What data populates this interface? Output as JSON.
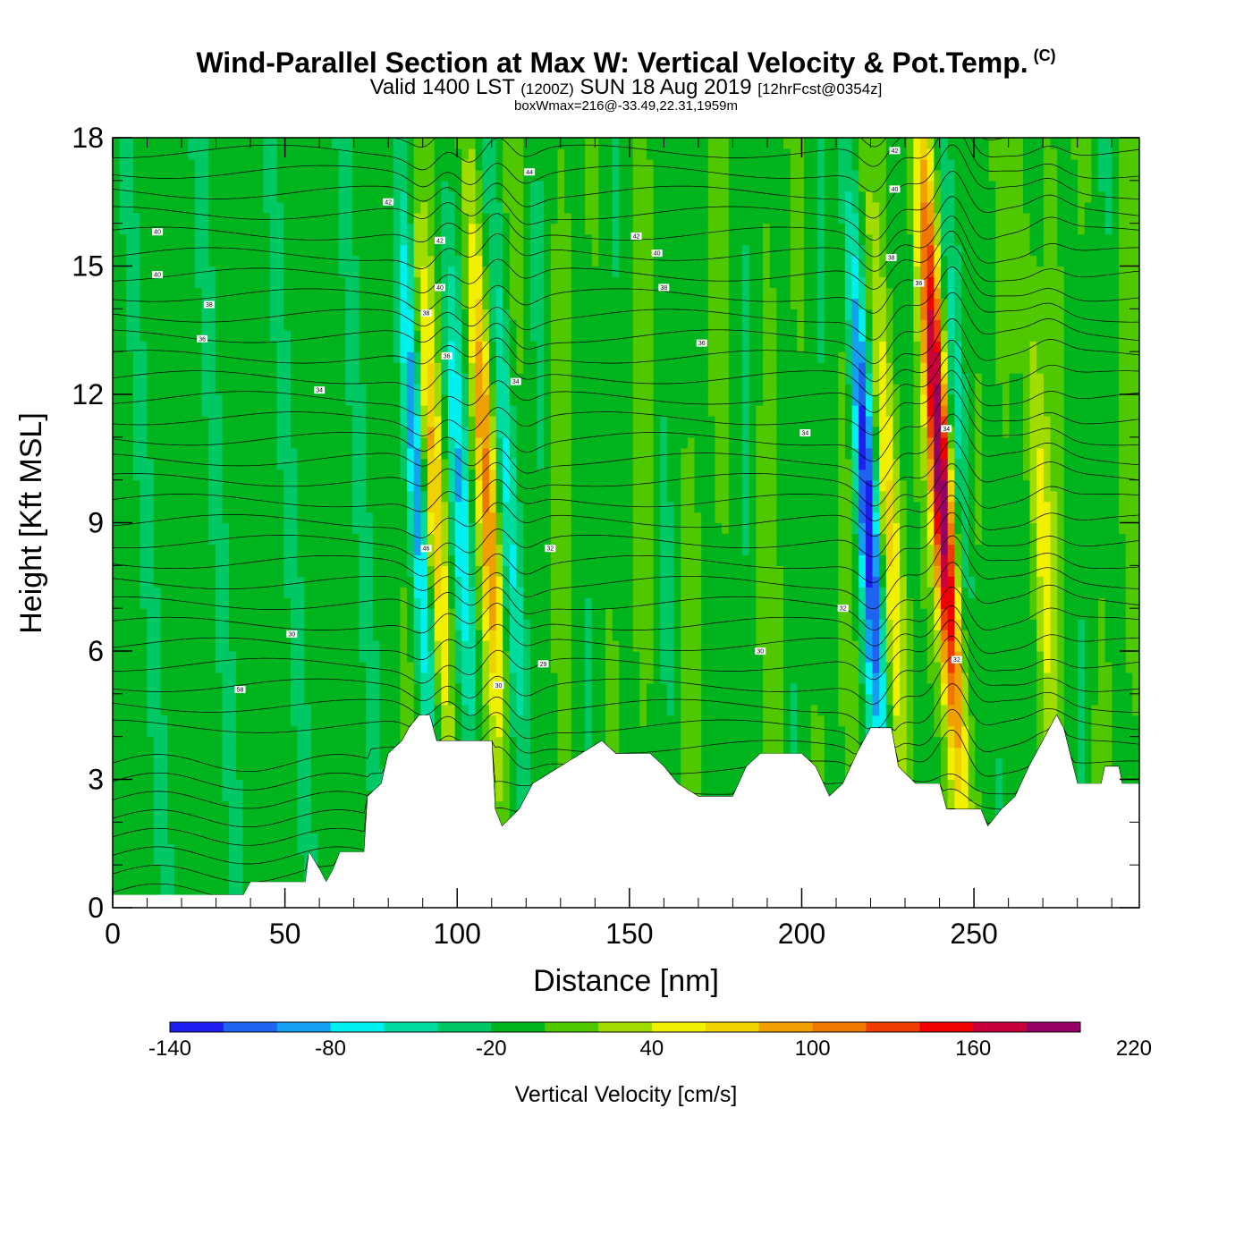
{
  "header": {
    "title": "Wind-Parallel Section at Max W: Vertical Velocity & Pot.Temp.",
    "title_mark": "(C)",
    "valid_prefix": "Valid 1400 LST",
    "valid_utc": "(1200Z)",
    "valid_date": "SUN 18 Aug 2019",
    "forecast_info": "[12hrFcst@0354z]",
    "box_info": "boxWmax=216@-33.49,22.31,1959m"
  },
  "chart_data": {
    "type": "heatmap",
    "title": "Wind-Parallel Section at Max W: Vertical Velocity & Pot.Temp.",
    "xlabel": "Distance [nm]",
    "ylabel": "Height [Kft MSL]",
    "xlim": [
      0,
      298
    ],
    "ylim": [
      0,
      18
    ],
    "x_ticks": [
      "0",
      "50",
      "100",
      "150",
      "200",
      "250"
    ],
    "x_tick_values": [
      0,
      50,
      100,
      150,
      200,
      250
    ],
    "y_ticks": [
      "0",
      "3",
      "6",
      "9",
      "12",
      "15",
      "18"
    ],
    "y_tick_values": [
      0,
      3,
      6,
      9,
      12,
      15,
      18
    ],
    "colorbar": {
      "title": "Vertical Velocity [cm/s]",
      "labels": [
        "-140",
        "-80",
        "-20",
        "40",
        "100",
        "160",
        "220"
      ],
      "min": -140,
      "max": 220,
      "step": 20,
      "colors": [
        "#1e1ef0",
        "#1e64f0",
        "#14a0f0",
        "#00f0f0",
        "#00dca0",
        "#00c864",
        "#00b41e",
        "#50c800",
        "#a0dc00",
        "#f0f000",
        "#f0d200",
        "#f0a000",
        "#f07800",
        "#f03c00",
        "#f00000",
        "#c8003c",
        "#960064"
      ]
    },
    "updraft_centers": [
      {
        "x": 96,
        "w": 90
      },
      {
        "x": 112,
        "w": 100
      },
      {
        "x": 228,
        "w": 70
      },
      {
        "x": 244,
        "w": 216
      },
      {
        "x": 272,
        "w": 55
      }
    ],
    "downdraft_centers": [
      {
        "x": 92,
        "w": -100
      },
      {
        "x": 104,
        "w": -60
      },
      {
        "x": 118,
        "w": -60
      },
      {
        "x": 222,
        "w": -120
      },
      {
        "x": 250,
        "w": -40
      }
    ],
    "terrain_kft": [
      {
        "x": 0,
        "z": 0.3
      },
      {
        "x": 38,
        "z": 0.3
      },
      {
        "x": 40,
        "z": 0.6
      },
      {
        "x": 56,
        "z": 0.6
      },
      {
        "x": 57,
        "z": 1.3
      },
      {
        "x": 60,
        "z": 0.9
      },
      {
        "x": 62,
        "z": 0.6
      },
      {
        "x": 64,
        "z": 0.9
      },
      {
        "x": 66,
        "z": 1.3
      },
      {
        "x": 73,
        "z": 1.3
      },
      {
        "x": 74,
        "z": 2.6
      },
      {
        "x": 78,
        "z": 2.9
      },
      {
        "x": 80,
        "z": 3.6
      },
      {
        "x": 84,
        "z": 3.9
      },
      {
        "x": 86,
        "z": 4.2
      },
      {
        "x": 89,
        "z": 4.5
      },
      {
        "x": 92,
        "z": 4.5
      },
      {
        "x": 94,
        "z": 3.9
      },
      {
        "x": 110,
        "z": 3.9
      },
      {
        "x": 111,
        "z": 2.3
      },
      {
        "x": 113,
        "z": 1.9
      },
      {
        "x": 118,
        "z": 2.3
      },
      {
        "x": 122,
        "z": 2.9
      },
      {
        "x": 130,
        "z": 3.3
      },
      {
        "x": 142,
        "z": 3.9
      },
      {
        "x": 146,
        "z": 3.6
      },
      {
        "x": 156,
        "z": 3.6
      },
      {
        "x": 160,
        "z": 3.3
      },
      {
        "x": 164,
        "z": 2.9
      },
      {
        "x": 170,
        "z": 2.6
      },
      {
        "x": 180,
        "z": 2.6
      },
      {
        "x": 184,
        "z": 3.3
      },
      {
        "x": 188,
        "z": 3.6
      },
      {
        "x": 200,
        "z": 3.6
      },
      {
        "x": 204,
        "z": 3.3
      },
      {
        "x": 208,
        "z": 2.6
      },
      {
        "x": 212,
        "z": 2.9
      },
      {
        "x": 216,
        "z": 3.6
      },
      {
        "x": 220,
        "z": 4.2
      },
      {
        "x": 226,
        "z": 4.2
      },
      {
        "x": 228,
        "z": 3.3
      },
      {
        "x": 233,
        "z": 2.9
      },
      {
        "x": 240,
        "z": 2.9
      },
      {
        "x": 242,
        "z": 2.3
      },
      {
        "x": 252,
        "z": 2.3
      },
      {
        "x": 254,
        "z": 1.9
      },
      {
        "x": 258,
        "z": 2.3
      },
      {
        "x": 262,
        "z": 2.6
      },
      {
        "x": 266,
        "z": 3.3
      },
      {
        "x": 270,
        "z": 3.9
      },
      {
        "x": 274,
        "z": 4.5
      },
      {
        "x": 276,
        "z": 4.2
      },
      {
        "x": 280,
        "z": 2.9
      },
      {
        "x": 287,
        "z": 2.9
      },
      {
        "x": 288,
        "z": 3.3
      },
      {
        "x": 292,
        "z": 3.3
      },
      {
        "x": 293,
        "z": 2.9
      },
      {
        "x": 298,
        "z": 2.9
      }
    ],
    "isentrope_labels": [
      {
        "x": 13,
        "z": 15.8,
        "text": "40"
      },
      {
        "x": 13,
        "z": 14.8,
        "text": "40"
      },
      {
        "x": 28,
        "z": 14.1,
        "text": "38"
      },
      {
        "x": 26,
        "z": 13.3,
        "text": "36"
      },
      {
        "x": 60,
        "z": 12.1,
        "text": "34"
      },
      {
        "x": 52,
        "z": 6.4,
        "text": "30"
      },
      {
        "x": 37,
        "z": 5.1,
        "text": "58"
      },
      {
        "x": 80,
        "z": 16.5,
        "text": "42"
      },
      {
        "x": 95,
        "z": 15.6,
        "text": "42"
      },
      {
        "x": 95,
        "z": 14.5,
        "text": "40"
      },
      {
        "x": 91,
        "z": 13.9,
        "text": "38"
      },
      {
        "x": 97,
        "z": 12.9,
        "text": "36"
      },
      {
        "x": 91,
        "z": 8.4,
        "text": "46"
      },
      {
        "x": 121,
        "z": 17.2,
        "text": "44"
      },
      {
        "x": 117,
        "z": 12.3,
        "text": "34"
      },
      {
        "x": 127,
        "z": 8.4,
        "text": "32"
      },
      {
        "x": 125,
        "z": 5.7,
        "text": "29"
      },
      {
        "x": 112,
        "z": 5.2,
        "text": "30"
      },
      {
        "x": 152,
        "z": 15.7,
        "text": "42"
      },
      {
        "x": 158,
        "z": 15.3,
        "text": "40"
      },
      {
        "x": 160,
        "z": 14.5,
        "text": "38"
      },
      {
        "x": 171,
        "z": 13.2,
        "text": "36"
      },
      {
        "x": 201,
        "z": 11.1,
        "text": "34"
      },
      {
        "x": 188,
        "z": 6.0,
        "text": "30"
      },
      {
        "x": 212,
        "z": 7.0,
        "text": "32"
      },
      {
        "x": 227,
        "z": 17.7,
        "text": "42"
      },
      {
        "x": 227,
        "z": 16.8,
        "text": "40"
      },
      {
        "x": 226,
        "z": 15.2,
        "text": "38"
      },
      {
        "x": 234,
        "z": 14.6,
        "text": "36"
      },
      {
        "x": 242,
        "z": 11.2,
        "text": "34"
      },
      {
        "x": 245,
        "z": 5.8,
        "text": "32"
      }
    ]
  }
}
